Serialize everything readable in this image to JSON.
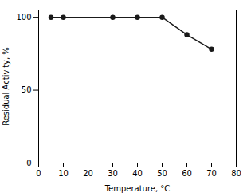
{
  "chart_data": {
    "type": "line",
    "x": [
      5,
      10,
      30,
      40,
      50,
      60,
      70
    ],
    "values": [
      100,
      100,
      100,
      100,
      100,
      88,
      78
    ],
    "color": "#1a1a1a",
    "marker": "circle",
    "xlabel": "Temperature, °C",
    "ylabel": "Residual Activity, %",
    "xlim": [
      0,
      80
    ],
    "ylim": [
      0,
      105
    ],
    "xticks": [
      0,
      10,
      20,
      30,
      40,
      50,
      60,
      70,
      80
    ],
    "yticks": [
      0,
      50,
      100
    ]
  }
}
